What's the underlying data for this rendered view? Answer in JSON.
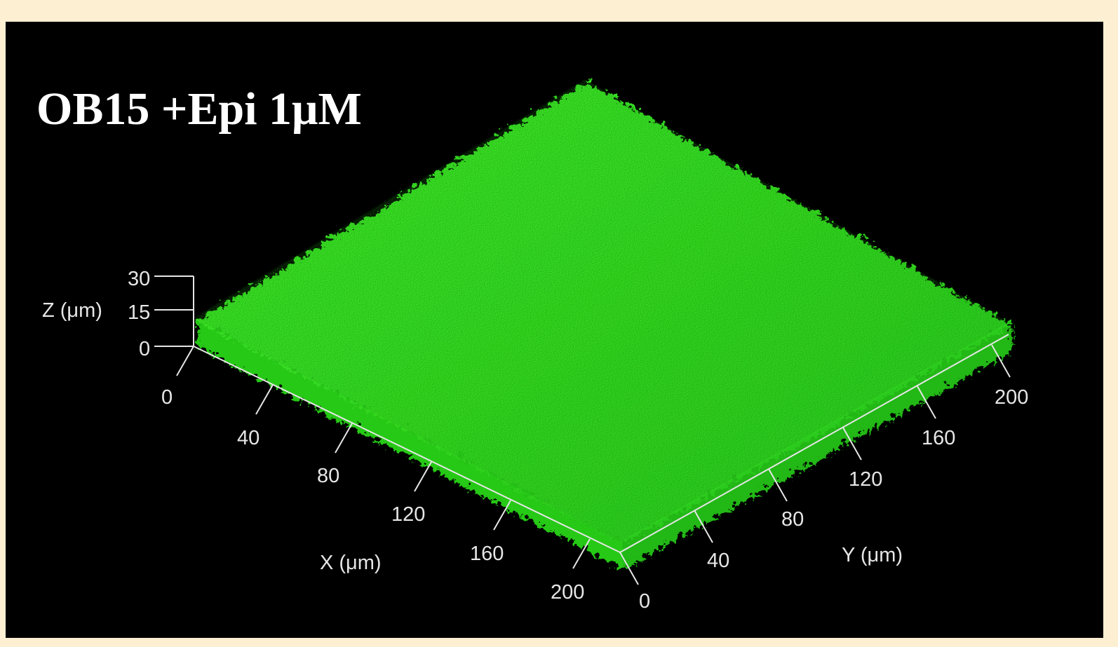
{
  "image": {
    "title": "OB15 +Epi 1μM",
    "description_colors": {
      "page_background": "#fdf0d2",
      "panel_background": "#000000",
      "biofilm_green": "#32e11e",
      "axis_color": "#e6e6e6"
    },
    "axes": {
      "z": {
        "label": "Z (μm)",
        "ticks": [
          "0",
          "15",
          "30"
        ]
      },
      "x": {
        "label": "X (μm)",
        "ticks": [
          "0",
          "40",
          "80",
          "120",
          "160",
          "200"
        ]
      },
      "y": {
        "label": "Y (μm)",
        "ticks": [
          "0",
          "40",
          "80",
          "120",
          "160",
          "200"
        ]
      }
    }
  }
}
